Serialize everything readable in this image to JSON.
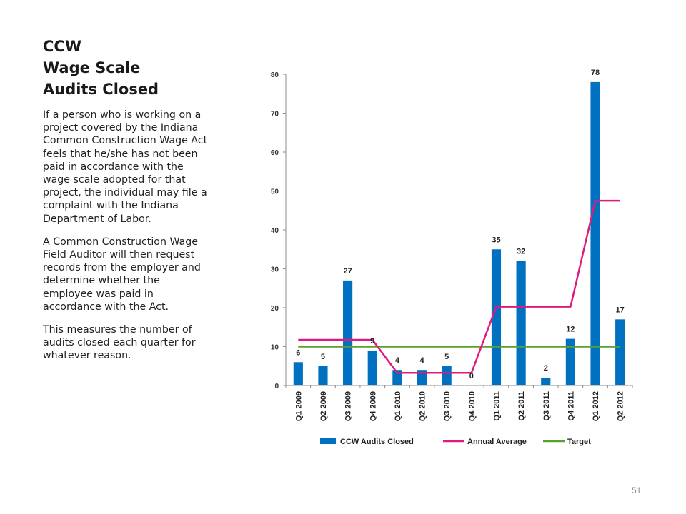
{
  "slide": {
    "title_lines": [
      "CCW",
      "Wage Scale",
      "Audits Closed"
    ],
    "paragraphs": [
      "If a person who is working on a project covered by the Indiana Common Construction Wage Act feels that he/she has not been paid in accordance with the wage scale adopted for that project, the individual may file a complaint with the Indiana Department of Labor.",
      "A Common Construction Wage Field Auditor will then request records from the employer and determine whether the employee was paid in accordance with the Act.",
      "This measures the number of audits closed each quarter for whatever reason."
    ],
    "page_number": "51"
  },
  "chart_data": {
    "type": "bar",
    "categories": [
      "Q1 2009",
      "Q2 2009",
      "Q3 2009",
      "Q4 2009",
      "Q1 2010",
      "Q2 2010",
      "Q3 2010",
      "Q4 2010",
      "Q1 2011",
      "Q2 2011",
      "Q3 2011",
      "Q4 2011",
      "Q1 2012",
      "Q2 2012"
    ],
    "series": [
      {
        "name": "CCW Audits Closed",
        "type": "bar",
        "color": "#0070C0",
        "values": [
          6,
          5,
          27,
          9,
          4,
          4,
          5,
          0,
          35,
          32,
          2,
          12,
          78,
          17
        ],
        "data_labels": true
      },
      {
        "name": "Annual Average",
        "type": "line",
        "color": "#E0197D",
        "values": [
          11.75,
          11.75,
          11.75,
          11.75,
          3.25,
          3.25,
          3.25,
          3.25,
          20.25,
          20.25,
          20.25,
          20.25,
          47.5,
          47.5
        ]
      },
      {
        "name": "Target",
        "type": "line",
        "color": "#5AA02C",
        "values": [
          10,
          10,
          10,
          10,
          10,
          10,
          10,
          10,
          10,
          10,
          10,
          10,
          10,
          10
        ]
      }
    ],
    "ylim": [
      0,
      80
    ],
    "yticks": [
      0,
      10,
      20,
      30,
      40,
      50,
      60,
      70,
      80
    ],
    "grid": false,
    "legend_position": "bottom",
    "title": "",
    "xlabel": "",
    "ylabel": ""
  }
}
